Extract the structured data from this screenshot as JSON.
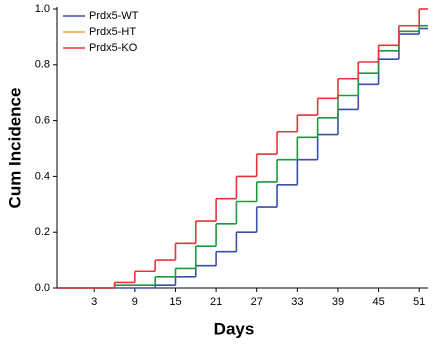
{
  "chart_data": {
    "type": "step",
    "y_label": "Cum Incidence",
    "x_label": "Days",
    "x": [
      0,
      6,
      9,
      12,
      15,
      18,
      21,
      24,
      27,
      30,
      33,
      36,
      39,
      42,
      45,
      48,
      51
    ],
    "series": [
      {
        "name": "Prdx5-WT",
        "color": "#3b4fa8",
        "legend_color": "#3b4fa8",
        "values": [
          0,
          0,
          0,
          0.01,
          0.04,
          0.08,
          0.13,
          0.2,
          0.29,
          0.37,
          0.46,
          0.55,
          0.64,
          0.73,
          0.82,
          0.91,
          0.93
        ]
      },
      {
        "name": "Prdx5-HT",
        "color": "#1e9a3c",
        "legend_color": "#f0a040",
        "values": [
          0,
          0.01,
          0.01,
          0.04,
          0.07,
          0.15,
          0.23,
          0.31,
          0.38,
          0.46,
          0.54,
          0.61,
          0.69,
          0.77,
          0.85,
          0.92,
          0.94
        ]
      },
      {
        "name": "Prdx5-KO",
        "color": "#e8333a",
        "legend_color": "#e8333a",
        "values": [
          0,
          0.02,
          0.06,
          0.1,
          0.16,
          0.24,
          0.32,
          0.4,
          0.48,
          0.56,
          0.62,
          0.68,
          0.75,
          0.81,
          0.87,
          0.94,
          1.0
        ]
      }
    ],
    "xlim": [
      -2.5,
      52.3
    ],
    "xticks": [
      3,
      9,
      15,
      21,
      27,
      33,
      39,
      45,
      51
    ],
    "ylim": [
      0,
      1
    ],
    "yticks": [
      {
        "value": 0,
        "label": "0.0"
      },
      {
        "value": 0.2,
        "label": "0.2"
      },
      {
        "value": 0.4,
        "label": "0.4"
      },
      {
        "value": 0.6,
        "label": "0.6"
      },
      {
        "value": 0.8,
        "label": "0.8"
      },
      {
        "value": 1,
        "label": "1.0"
      }
    ],
    "legend": "top-left"
  }
}
